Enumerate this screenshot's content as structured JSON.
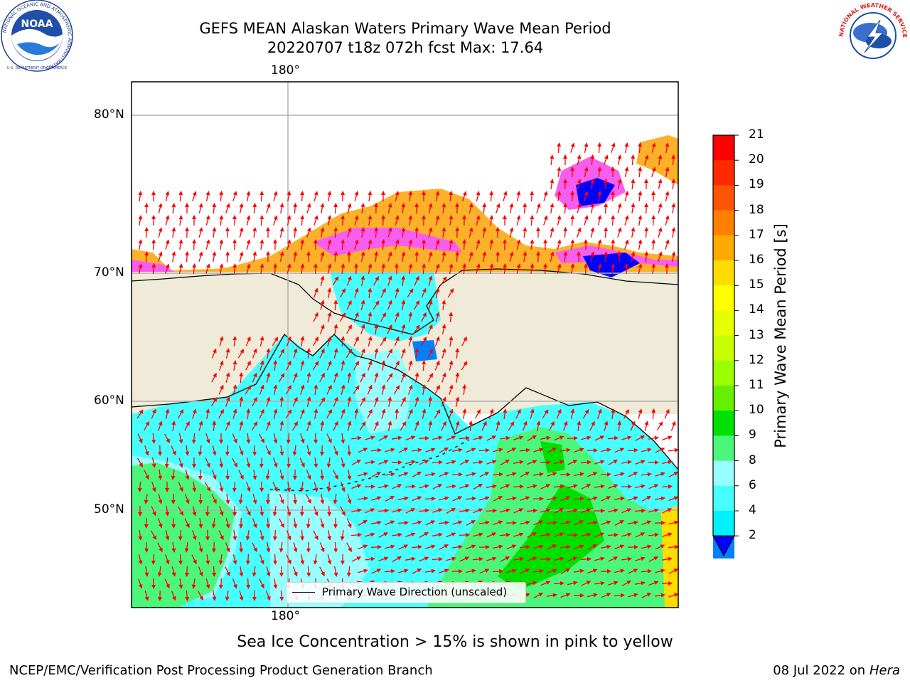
{
  "title": {
    "line1": "GEFS MEAN Alaskan Waters Primary Wave Mean Period",
    "line2": "20220707 t18z 072h fcst   Max: 17.64"
  },
  "map": {
    "lon_label_top": "180°",
    "lon_label_bottom": "180°",
    "lat_labels": [
      "80°N",
      "70°N",
      "60°N",
      "50°N"
    ],
    "legend_label": "Primary Wave Direction (unscaled)",
    "colors": {
      "land": "#efebd8",
      "ocean_light": "#96ffff",
      "ocean_mid": "#46ffff",
      "ocean_cyan": "#00f0ff",
      "green_light": "#4bf77a",
      "green": "#00e000",
      "ice_pink": "#f65ef0",
      "ice_orange": "#fbb22a",
      "ice_blue": "#0000ff",
      "arrow": "#ff0000",
      "grid": "#b0b0b0"
    }
  },
  "colorbar": {
    "title": "Primary Wave Mean Period [s]",
    "ticks": [
      "21",
      "20",
      "19",
      "18",
      "17",
      "16",
      "15",
      "14",
      "13",
      "12",
      "11",
      "10",
      "9",
      "8",
      "6",
      "4",
      "2"
    ],
    "colors": [
      "#ff0000",
      "#ff2a00",
      "#ff5500",
      "#ff7f00",
      "#ffaa00",
      "#ffdd00",
      "#ffff00",
      "#e6ff00",
      "#c8ff00",
      "#9cff00",
      "#64f000",
      "#00e000",
      "#4bf77a",
      "#96ffff",
      "#46ffff",
      "#00f0ff",
      "#0080ff"
    ],
    "under_color": "#0000ff"
  },
  "notes": {
    "ice": "Sea Ice Concentration > 15% is shown in pink to yellow"
  },
  "footer": {
    "left": "NCEP/EMC/Verification Post Processing Product Generation Branch",
    "right_prefix": "08 Jul 2022 on ",
    "right_italic": "Hera"
  },
  "logos": {
    "noaa_text": "NOAA",
    "noaa_ring_text": "NATIONAL OCEANIC AND ATMOSPHERIC ADMINISTRATION",
    "noaa_ring_bottom": "U.S. DEPARTMENT OF COMMERCE",
    "nws_ring_text": "NATIONAL WEATHER SERVICE"
  }
}
